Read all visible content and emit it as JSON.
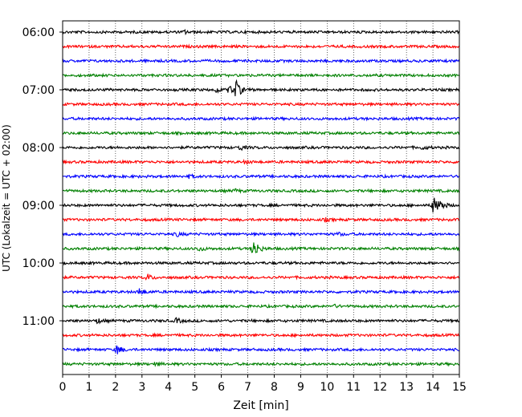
{
  "chart_data": {
    "type": "line",
    "title": "",
    "xlabel": "Zeit  [min]",
    "ylabel": "UTC (Lokalzeit = UTC + 02:00)",
    "xlim": [
      0,
      15
    ],
    "x_ticks": [
      0,
      1,
      2,
      3,
      4,
      5,
      6,
      7,
      8,
      9,
      10,
      11,
      12,
      13,
      14,
      15
    ],
    "x_tick_labels": [
      "0",
      "1",
      "2",
      "3",
      "4",
      "5",
      "6",
      "7",
      "8",
      "9",
      "10",
      "11",
      "12",
      "13",
      "14",
      "15"
    ],
    "y_tick_labels": [
      "06:00",
      "07:00",
      "08:00",
      "09:00",
      "10:00",
      "11:00"
    ],
    "y_tick_trace_index": [
      0,
      4,
      8,
      12,
      16,
      20
    ],
    "grid": {
      "vertical": true,
      "horizontal": false,
      "style": "dotted"
    },
    "trace_interval_minutes": 15,
    "color_cycle": [
      "#000000",
      "#ff0000",
      "#0000ff",
      "#008000"
    ],
    "traces": [
      {
        "start": "06:00",
        "events": [
          {
            "t": 4.6,
            "a": 2
          }
        ]
      },
      {
        "start": "06:15",
        "events": []
      },
      {
        "start": "06:30",
        "events": []
      },
      {
        "start": "06:45",
        "events": []
      },
      {
        "start": "07:00",
        "events": [
          {
            "t": 5.8,
            "a": 3
          },
          {
            "t": 6.3,
            "a": 5
          },
          {
            "t": 6.55,
            "a": 11
          }
        ]
      },
      {
        "start": "07:15",
        "events": []
      },
      {
        "start": "07:30",
        "events": []
      },
      {
        "start": "07:45",
        "events": []
      },
      {
        "start": "08:00",
        "events": [
          {
            "t": 6.7,
            "a": 3
          },
          {
            "t": 13.6,
            "a": 2
          }
        ]
      },
      {
        "start": "08:15",
        "events": [
          {
            "t": 6.9,
            "a": 2
          }
        ]
      },
      {
        "start": "08:30",
        "events": [
          {
            "t": 4.8,
            "a": 2
          }
        ]
      },
      {
        "start": "08:45",
        "events": [
          {
            "t": 6.5,
            "a": 2
          }
        ]
      },
      {
        "start": "09:00",
        "events": [
          {
            "t": 14.0,
            "a": 12
          },
          {
            "t": 14.25,
            "a": 6
          }
        ]
      },
      {
        "start": "09:15",
        "events": [
          {
            "t": 9.9,
            "a": 2
          }
        ]
      },
      {
        "start": "09:30",
        "events": [
          {
            "t": 4.3,
            "a": 3
          },
          {
            "t": 10.4,
            "a": 2
          }
        ]
      },
      {
        "start": "09:45",
        "events": [
          {
            "t": 5.15,
            "a": 3
          },
          {
            "t": 7.2,
            "a": 15
          }
        ]
      },
      {
        "start": "10:00",
        "events": []
      },
      {
        "start": "10:15",
        "events": [
          {
            "t": 3.2,
            "a": 4
          }
        ]
      },
      {
        "start": "10:30",
        "events": [
          {
            "t": 2.9,
            "a": 5
          }
        ]
      },
      {
        "start": "10:45",
        "events": [
          {
            "t": 10.2,
            "a": 2
          }
        ]
      },
      {
        "start": "11:00",
        "events": [
          {
            "t": 1.3,
            "a": 3
          },
          {
            "t": 4.3,
            "a": 3
          }
        ]
      },
      {
        "start": "11:15",
        "events": []
      },
      {
        "start": "11:30",
        "events": [
          {
            "t": 2.05,
            "a": 6
          }
        ]
      },
      {
        "start": "11:45",
        "events": [
          {
            "t": 3.5,
            "a": 2
          }
        ]
      }
    ]
  }
}
